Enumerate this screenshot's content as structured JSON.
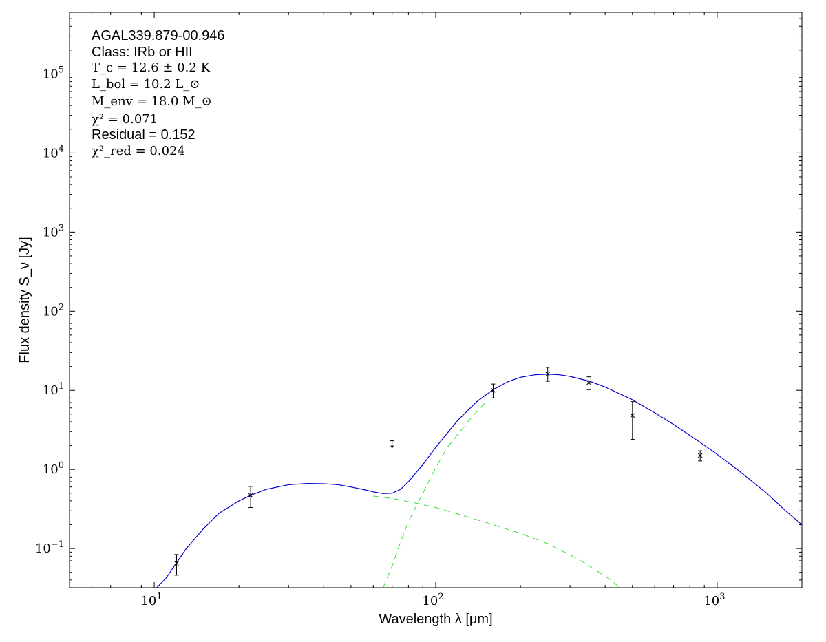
{
  "chart_data": {
    "type": "scatter",
    "xscale": "log",
    "yscale": "log",
    "xlim": [
      5,
      2000
    ],
    "ylim": [
      0.032,
      600000
    ],
    "xlabel": "Wavelength λ [μm]",
    "ylabel": "Flux density S_ν [Jy]",
    "xticks": [
      {
        "value": 10,
        "base": "10",
        "exp": "1"
      },
      {
        "value": 100,
        "base": "10",
        "exp": "2"
      },
      {
        "value": 1000,
        "base": "10",
        "exp": "3"
      }
    ],
    "yticks": [
      {
        "value": 0.1,
        "base": "10",
        "exp": "−1"
      },
      {
        "value": 1,
        "base": "10",
        "exp": "0"
      },
      {
        "value": 10,
        "base": "10",
        "exp": "1"
      },
      {
        "value": 100,
        "base": "10",
        "exp": "2"
      },
      {
        "value": 1000,
        "base": "10",
        "exp": "3"
      },
      {
        "value": 10000,
        "base": "10",
        "exp": "4"
      },
      {
        "value": 100000,
        "base": "10",
        "exp": "5"
      }
    ],
    "annotations": {
      "source": "AGAL339.879-00.946",
      "class_line": "Class: IRb or HII",
      "tc": "T_c = 12.6 ± 0.2 K",
      "lbol": "L_bol = 10.2 L_⊙",
      "menv": "M_env = 18.0 M_⊙",
      "chi2": "χ² = 0.071",
      "residual": "Residual = 0.152",
      "chi2red": "χ²_red = 0.024"
    },
    "points": [
      {
        "x": 12,
        "y": 0.065,
        "ylo": 0.046,
        "yhi": 0.084
      },
      {
        "x": 22,
        "y": 0.47,
        "ylo": 0.33,
        "yhi": 0.61
      },
      {
        "x": 160,
        "y": 10.0,
        "ylo": 8.0,
        "yhi": 12.0
      },
      {
        "x": 250,
        "y": 16.0,
        "ylo": 13.0,
        "yhi": 19.5
      },
      {
        "x": 350,
        "y": 12.5,
        "ylo": 10.2,
        "yhi": 14.8
      },
      {
        "x": 500,
        "y": 4.8,
        "ylo": 2.4,
        "yhi": 7.2
      },
      {
        "x": 870,
        "y": 1.5,
        "ylo": 1.28,
        "yhi": 1.72
      }
    ],
    "upper_limits": [
      {
        "x": 70,
        "y": 2.3
      }
    ],
    "model_total": [
      [
        10.2,
        0.032
      ],
      [
        11,
        0.042
      ],
      [
        12,
        0.066
      ],
      [
        13,
        0.1
      ],
      [
        15,
        0.18
      ],
      [
        17,
        0.28
      ],
      [
        20,
        0.4
      ],
      [
        22,
        0.47
      ],
      [
        25,
        0.56
      ],
      [
        30,
        0.64
      ],
      [
        35,
        0.665
      ],
      [
        40,
        0.66
      ],
      [
        45,
        0.64
      ],
      [
        50,
        0.6
      ],
      [
        55,
        0.56
      ],
      [
        60,
        0.52
      ],
      [
        65,
        0.495
      ],
      [
        70,
        0.5
      ],
      [
        75,
        0.56
      ],
      [
        80,
        0.7
      ],
      [
        90,
        1.15
      ],
      [
        100,
        1.9
      ],
      [
        120,
        4.2
      ],
      [
        140,
        7.2
      ],
      [
        160,
        10.2
      ],
      [
        180,
        12.8
      ],
      [
        200,
        14.6
      ],
      [
        225,
        15.7
      ],
      [
        250,
        16.0
      ],
      [
        275,
        15.7
      ],
      [
        300,
        15.0
      ],
      [
        350,
        13.1
      ],
      [
        400,
        11.0
      ],
      [
        500,
        7.6
      ],
      [
        600,
        5.2
      ],
      [
        700,
        3.7
      ],
      [
        870,
        2.2
      ],
      [
        1000,
        1.55
      ],
      [
        1200,
        0.95
      ],
      [
        1500,
        0.5
      ],
      [
        1750,
        0.3
      ],
      [
        2000,
        0.2
      ]
    ],
    "model_components": [
      {
        "color": "#33dd33",
        "points": [
          [
            60,
            0.46
          ],
          [
            70,
            0.43
          ],
          [
            85,
            0.375
          ],
          [
            100,
            0.33
          ],
          [
            150,
            0.215
          ],
          [
            200,
            0.155
          ],
          [
            250,
            0.115
          ],
          [
            300,
            0.083
          ],
          [
            340,
            0.065
          ],
          [
            380,
            0.05
          ],
          [
            420,
            0.04
          ],
          [
            450,
            0.032
          ]
        ]
      },
      {
        "color": "#33dd33",
        "points": [
          [
            65,
            0.032
          ],
          [
            70,
            0.06
          ],
          [
            75,
            0.12
          ],
          [
            80,
            0.22
          ],
          [
            90,
            0.5
          ],
          [
            100,
            1.05
          ],
          [
            110,
            1.9
          ],
          [
            130,
            4.0
          ],
          [
            150,
            7.0
          ]
        ]
      }
    ],
    "colors": {
      "model": "#0000cc",
      "components": "#33dd33",
      "points": "#000000"
    }
  }
}
